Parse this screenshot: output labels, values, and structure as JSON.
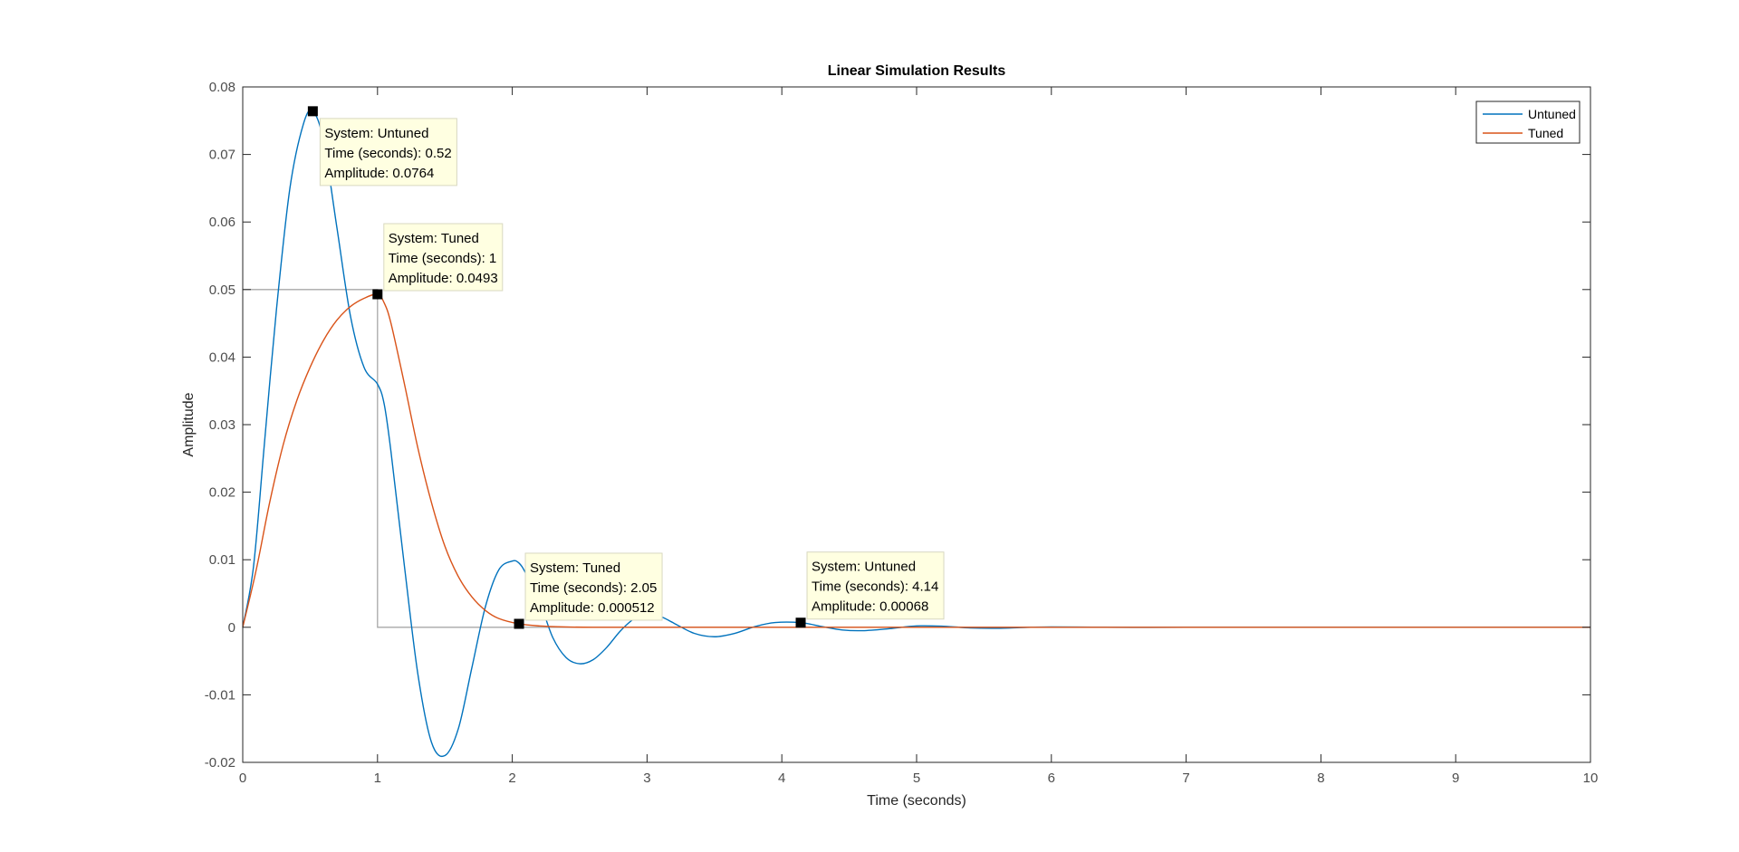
{
  "chart_data": {
    "type": "line",
    "title": "Linear Simulation Results",
    "xlabel": "Time (seconds)",
    "ylabel": "Amplitude",
    "xlim": [
      0,
      10
    ],
    "ylim": [
      -0.02,
      0.08
    ],
    "xticks": [
      0,
      1,
      2,
      3,
      4,
      5,
      6,
      7,
      8,
      9,
      10
    ],
    "xtick_labels": [
      "0",
      "1",
      "2",
      "3",
      "4",
      "5",
      "6",
      "7",
      "8",
      "9",
      "10"
    ],
    "yticks": [
      -0.02,
      -0.01,
      0,
      0.01,
      0.02,
      0.03,
      0.04,
      0.05,
      0.06,
      0.07,
      0.08
    ],
    "ytick_labels": [
      "-0.02",
      "-0.01",
      "0",
      "0.01",
      "0.02",
      "0.03",
      "0.04",
      "0.05",
      "0.06",
      "0.07",
      "0.08"
    ],
    "grid": false,
    "legend_position": "top-right",
    "input_signal": {
      "color": "#a8a8a8",
      "x": [
        0,
        1,
        1,
        10
      ],
      "y": [
        0.05,
        0.05,
        0,
        0
      ]
    },
    "series": [
      {
        "name": "Untuned",
        "color": "#0072bd",
        "x": [
          0,
          0.08,
          0.16,
          0.25,
          0.35,
          0.45,
          0.52,
          0.6,
          0.7,
          0.8,
          0.9,
          1.0,
          1.05,
          1.1,
          1.2,
          1.3,
          1.4,
          1.5,
          1.6,
          1.7,
          1.8,
          1.9,
          2.0,
          2.05,
          2.1,
          2.2,
          2.3,
          2.4,
          2.5,
          2.6,
          2.7,
          2.8,
          2.9,
          3.0,
          3.1,
          3.2,
          3.35,
          3.5,
          3.65,
          3.8,
          3.95,
          4.14,
          4.3,
          4.45,
          4.6,
          4.8,
          5.0,
          5.2,
          5.4,
          5.6,
          5.8,
          6.0,
          6.3,
          6.6,
          7.0,
          8.0,
          9.0,
          10.0
        ],
        "y": [
          0,
          0.009,
          0.027,
          0.047,
          0.065,
          0.0745,
          0.0764,
          0.072,
          0.059,
          0.046,
          0.0385,
          0.036,
          0.033,
          0.026,
          0.009,
          -0.007,
          -0.017,
          -0.019,
          -0.015,
          -0.006,
          0.003,
          0.0085,
          0.0098,
          0.0095,
          0.008,
          0.004,
          -0.0015,
          -0.0045,
          -0.0054,
          -0.0048,
          -0.003,
          -0.0006,
          0.0012,
          0.002,
          0.0016,
          0.0006,
          -0.0009,
          -0.0014,
          -0.0009,
          0.0001,
          0.0007,
          0.00068,
          0.0001,
          -0.0004,
          -0.0005,
          -0.0002,
          0.0002,
          0.00015,
          -0.0001,
          -0.00015,
          -3e-05,
          5e-05,
          2e-05,
          -2e-05,
          0,
          0,
          0,
          0
        ]
      },
      {
        "name": "Tuned",
        "color": "#d95319",
        "x": [
          0,
          0.1,
          0.2,
          0.3,
          0.4,
          0.5,
          0.6,
          0.7,
          0.8,
          0.9,
          1.0,
          1.05,
          1.1,
          1.2,
          1.3,
          1.4,
          1.5,
          1.6,
          1.7,
          1.8,
          1.9,
          2.05,
          2.2,
          2.4,
          2.6,
          3.0,
          4.0,
          5.0,
          6.0,
          8.0,
          10.0
        ],
        "y": [
          0,
          0.0085,
          0.0185,
          0.027,
          0.0335,
          0.0385,
          0.0425,
          0.0455,
          0.0475,
          0.0487,
          0.0493,
          0.048,
          0.045,
          0.036,
          0.0265,
          0.0185,
          0.012,
          0.0075,
          0.0045,
          0.0025,
          0.0013,
          0.000512,
          0.0002,
          5e-05,
          0,
          0,
          0,
          0,
          0,
          0,
          0
        ]
      }
    ],
    "datatips": [
      {
        "series": "Untuned",
        "x": 0.52,
        "y": 0.0764,
        "side": "below-right",
        "lines": [
          "System: Untuned",
          "Time (seconds): 0.52",
          "Amplitude: 0.0764"
        ]
      },
      {
        "series": "Tuned",
        "x": 1,
        "y": 0.0493,
        "side": "above-right",
        "lines": [
          "System: Tuned",
          "Time (seconds): 1",
          "Amplitude: 0.0493"
        ]
      },
      {
        "series": "Tuned",
        "x": 2.05,
        "y": 0.000512,
        "side": "above-right",
        "lines": [
          "System: Tuned",
          "Time (seconds): 2.05",
          "Amplitude: 0.000512"
        ]
      },
      {
        "series": "Untuned",
        "x": 4.14,
        "y": 0.00068,
        "side": "above-right",
        "lines": [
          "System: Untuned",
          "Time (seconds): 4.14",
          "Amplitude: 0.00068"
        ]
      }
    ]
  }
}
